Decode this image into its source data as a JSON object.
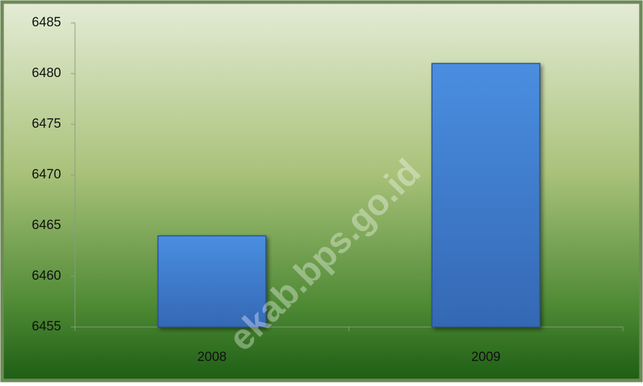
{
  "chart_data": {
    "type": "bar",
    "categories": [
      "2008",
      "2009"
    ],
    "values": [
      6464,
      6481
    ],
    "color": "#3f7fd0",
    "ylim": [
      6455,
      6485
    ],
    "yticks": [
      6455,
      6460,
      6465,
      6470,
      6475,
      6480,
      6485
    ],
    "watermark": "ekab.bps.go.id"
  }
}
